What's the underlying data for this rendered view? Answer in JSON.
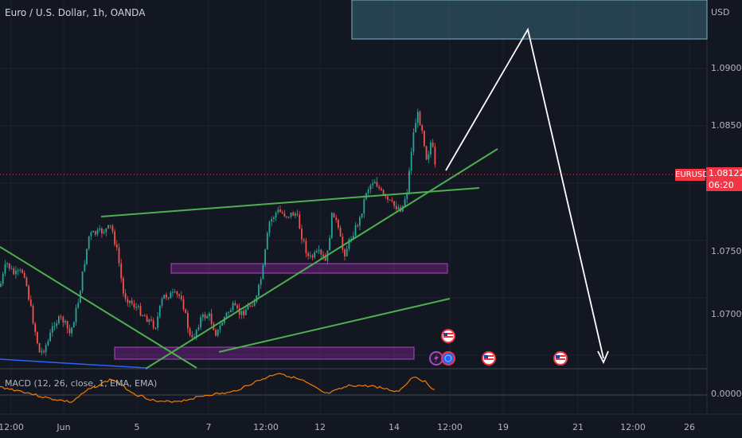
{
  "header": {
    "title": "Euro / U.S. Dollar, 1h, OANDA",
    "currency": "USD"
  },
  "price_axis": {
    "labels": [
      "1.09000",
      "1.08500",
      "1.07500",
      "1.07000"
    ],
    "current_symbol": "EURUSD",
    "current_price": "1.08122",
    "countdown": "06:20"
  },
  "time_axis": {
    "labels": [
      "12:00",
      "Jun",
      "5",
      "7",
      "12:00",
      "12",
      "14",
      "12:00",
      "19",
      "21",
      "12:00",
      "26"
    ]
  },
  "macd": {
    "title": "MACD (12, 26, close, 1, EMA, EMA)",
    "zero_label": "0.00000"
  },
  "event_icons": [
    "us-flag-icon",
    "lightning-icon",
    "globe-icon",
    "us-flag-icon",
    "us-flag-icon",
    "us-flag-icon"
  ],
  "colors": {
    "background": "#131722",
    "up_candle": "#26a69a",
    "down_candle": "#ef5350",
    "trendline": "#4caf50",
    "zone": "#9c27b0",
    "target_zone": "#4a90a4",
    "projection": "#ffffff",
    "price_tag": "#f23645",
    "macd_line": "#f57c00"
  }
}
